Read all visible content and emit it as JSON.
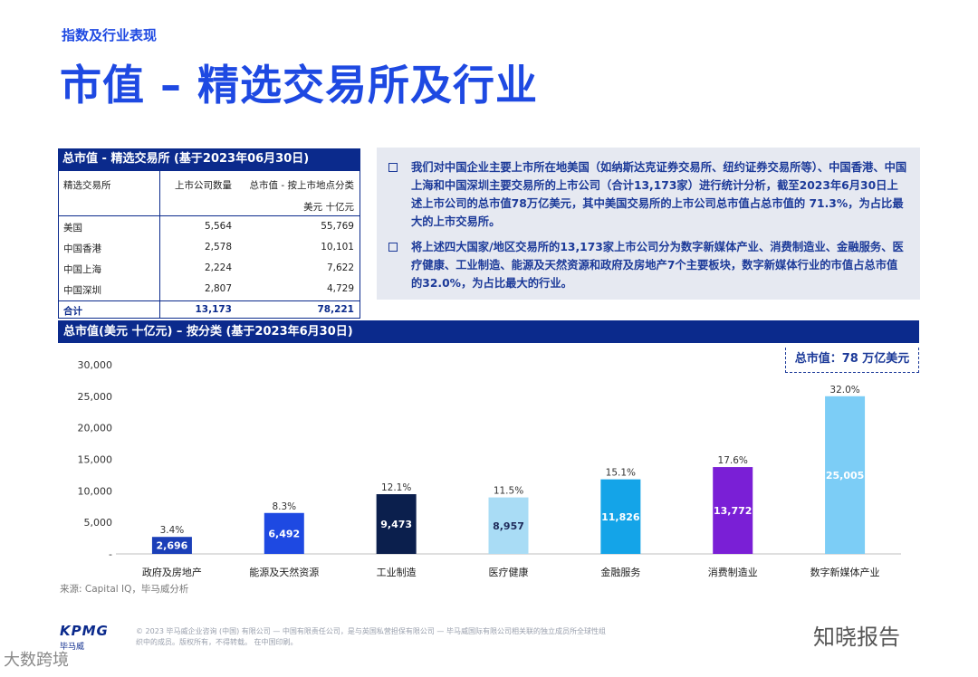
{
  "header": {
    "kicker": "指数及行业表现",
    "title": "市值 – 精选交易所及行业"
  },
  "table": {
    "title": "总市值 - 精选交易所 (基于2023年06月30日)",
    "col_headers": [
      "精选交易所",
      "上市公司数量",
      "总市值 - 按上市地点分类"
    ],
    "unit": "美元 十亿元",
    "rows": [
      {
        "name": "美国",
        "count": "5,564",
        "value": "55,769"
      },
      {
        "name": "中国香港",
        "count": "2,578",
        "value": "10,101"
      },
      {
        "name": "中国上海",
        "count": "2,224",
        "value": "7,622"
      },
      {
        "name": "中国深圳",
        "count": "2,807",
        "value": "4,729"
      }
    ],
    "total": {
      "name": "合计",
      "count": "13,173",
      "value": "78,221"
    }
  },
  "summary": {
    "bullets": [
      "我们对中国企业主要上市所在地美国（如纳斯达克证券交易所、纽约证券交易所等）、中国香港、中国上海和中国深圳主要交易所的上市公司（合计13,173家）进行统计分析，截至2023年6月30日上述上市公司的总市值78万亿美元，其中美国交易所的上市公司总市值占总市值的 71.3%，为占比最大的上市交易所。",
      "将上述四大国家/地区交易所的13,173家上市公司分为数字新媒体产业、消费制造业、金融服务、医疗健康、工业制造、能源及天然资源和政府及房地产7个主要板块，数字新媒体行业的市值占总市值的32.0%，为占比最大的行业。"
    ]
  },
  "chart_band": "总市值(美元 十亿元) – 按分类 (基于2023年6月30日)",
  "total_tag": "总市值：78 万亿美元",
  "chart_data": {
    "type": "bar",
    "categories": [
      "政府及房地产",
      "能源及天然资源",
      "工业制造",
      "医疗健康",
      "金融服务",
      "消费制造业",
      "数字新媒体产业"
    ],
    "values": [
      2696,
      6492,
      9473,
      8957,
      11826,
      13772,
      25005
    ],
    "value_labels": [
      "2,696",
      "6,492",
      "9,473",
      "8,957",
      "11,826",
      "13,772",
      "25,005"
    ],
    "percent_labels": [
      "3.4%",
      "8.3%",
      "12.1%",
      "11.5%",
      "15.1%",
      "17.6%",
      "32.0%"
    ],
    "colors": [
      "#1b3fb8",
      "#1e49e2",
      "#0b1f4d",
      "#a9dcf5",
      "#14a4e8",
      "#7a1fd6",
      "#7ccdf6"
    ],
    "value_text_colors": [
      "#ffffff",
      "#ffffff",
      "#ffffff",
      "#1e2a5a",
      "#ffffff",
      "#ffffff",
      "#ffffff"
    ],
    "yticks": [
      "-",
      "5,000",
      "10,000",
      "15,000",
      "20,000",
      "25,000",
      "30,000"
    ],
    "ylim": [
      0,
      30000
    ],
    "grid": false
  },
  "source": "来源: Capital IQ，毕马威分析",
  "footer": {
    "logo": "KPMG",
    "logo_sub": "毕马威",
    "copyright": "© 2023 毕马威企业咨询 (中国) 有限公司 — 中国有限责任公司，是与英国私营担保有限公司 — 毕马威国际有限公司相关联的独立成员所全球性组织中的成员。版权所有，不得转载。 在中国印刷。",
    "watermark_right": "知晓报告",
    "watermark_left": "大数跨境"
  }
}
